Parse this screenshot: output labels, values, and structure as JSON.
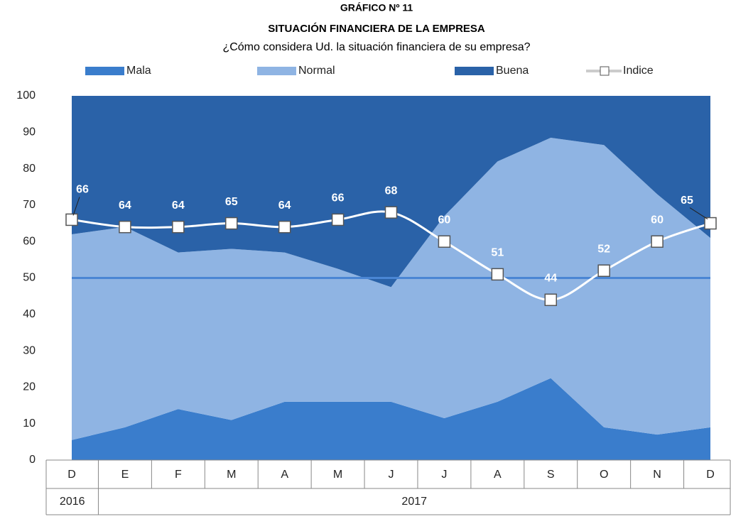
{
  "chart_data": {
    "type": "stacked_area",
    "title": "GRÁFICO Nº 11",
    "subtitle": "SITUACIÓN FINANCIERA DE LA EMPRESA",
    "question": "¿Cómo considera Ud. la situación financiera de su empresa?",
    "categories": [
      "D",
      "E",
      "F",
      "M",
      "A",
      "M",
      "J",
      "J",
      "A",
      "S",
      "O",
      "N",
      "D"
    ],
    "years": [
      "2016",
      "2017"
    ],
    "series": [
      {
        "name": "Mala",
        "color": "#3a7dcc",
        "values": [
          5.5,
          9,
          14,
          11,
          16,
          16,
          16,
          11.5,
          16,
          22.5,
          9,
          7,
          9
        ]
      },
      {
        "name": "Normal",
        "color": "#8fb4e3",
        "values": [
          56.5,
          55,
          43,
          47,
          41,
          36.5,
          31.5,
          55.5,
          66,
          66,
          77.5,
          66,
          52
        ]
      },
      {
        "name": "Buena",
        "color": "#2a62a8",
        "values": [
          38,
          36,
          43,
          42,
          43,
          47.5,
          52.5,
          33,
          18,
          11.5,
          13.5,
          27,
          39
        ]
      },
      {
        "name": "Indice",
        "type": "line",
        "color": "#ffffff",
        "values": [
          66,
          64,
          64,
          65,
          64,
          66,
          68,
          60,
          51,
          44,
          52,
          60,
          65
        ]
      }
    ],
    "reference_line": {
      "value": 50,
      "color": "#4a86d4"
    },
    "ylim": [
      0,
      100
    ],
    "yticks": [
      0,
      10,
      20,
      30,
      40,
      50,
      60,
      70,
      80,
      90,
      100
    ]
  }
}
